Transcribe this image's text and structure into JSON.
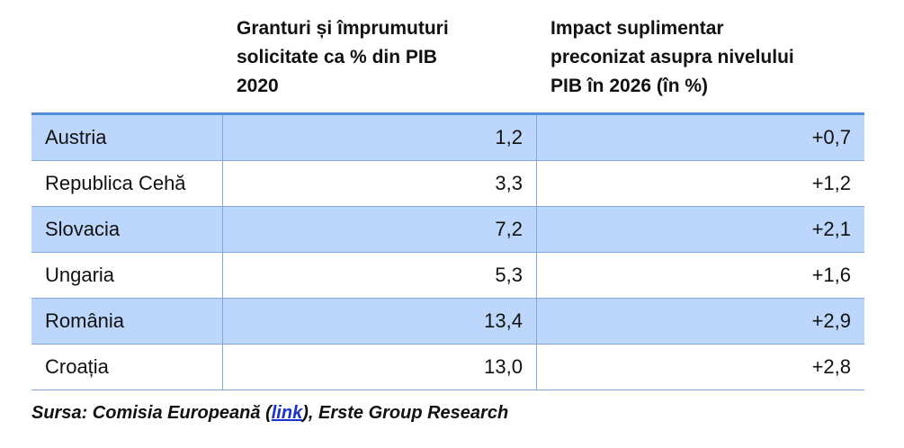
{
  "table": {
    "headers": {
      "country": "",
      "col1": [
        "Granturi și împrumuturi",
        "solicitate ca % din PIB",
        "2020"
      ],
      "col2": [
        "Impact suplimentar",
        "preconizat asupra nivelului",
        "PIB în 2026 (în %)"
      ]
    },
    "rows": [
      {
        "country": "Austria",
        "grants_pct_gdp": "1,2",
        "gdp_impact": "+0,7"
      },
      {
        "country": "Republica Cehă",
        "grants_pct_gdp": "3,3",
        "gdp_impact": "+1,2"
      },
      {
        "country": "Slovacia",
        "grants_pct_gdp": "7,2",
        "gdp_impact": "+2,1"
      },
      {
        "country": "Ungaria",
        "grants_pct_gdp": "5,3",
        "gdp_impact": "+1,6"
      },
      {
        "country": "România",
        "grants_pct_gdp": "13,4",
        "gdp_impact": "+2,9"
      },
      {
        "country": "Croația",
        "grants_pct_gdp": "13,0",
        "gdp_impact": "+2,8"
      }
    ]
  },
  "source": {
    "prefix": "Sursa: Comisia Europeană (",
    "link_text": "link",
    "suffix": "), Erste Group Research"
  },
  "colors": {
    "shaded_row": "#bdd6fb",
    "header_rule": "#4f8fd8",
    "grid_line": "#7fa9dc",
    "link": "#1a33cc"
  }
}
